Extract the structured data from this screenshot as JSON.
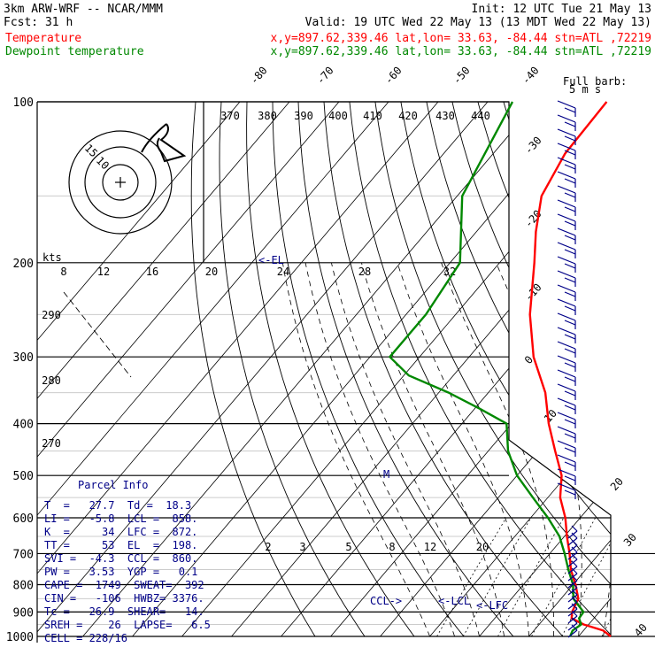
{
  "header": {
    "line1_left": "3km ARW-WRF -- NCAR/MMM",
    "line1_right": "Init: 12 UTC Tue 21 May 13",
    "line2_left": "Fcst:    31 h",
    "line2_right": "Valid: 19 UTC Wed 22 May 13 (13 MDT Wed 22 May 13)",
    "line3_left": "Temperature",
    "line3_right": "x,y=897.62,339.46   lat,lon= 33.63, -84.44  stn=ATL ,72219",
    "line4_left": "Dewpoint temperature",
    "line4_right": "x,y=897.62,339.46   lat,lon= 33.63, -84.44  stn=ATL ,72219"
  },
  "colors": {
    "temperature": "#ff0000",
    "dewpoint": "#008800",
    "parcel_text": "#000088",
    "wind_barbs": "#000088",
    "isobars": "#000000"
  },
  "chart_data": {
    "type": "line",
    "chart_kind": "skew-T log-p sounding",
    "y_scale": "log",
    "pressure_levels": [
      100,
      200,
      300,
      400,
      500,
      600,
      700,
      800,
      900,
      1000
    ],
    "temperature_ticks": [
      "-80",
      "-70",
      "-60",
      "-50",
      "-40",
      "-30",
      "-20",
      "-10",
      "0",
      "10",
      "20",
      "30",
      "40"
    ],
    "theta_labels": [
      "370",
      "380",
      "390",
      "400",
      "410",
      "420",
      "430",
      "440"
    ],
    "theta_e_labels": [
      "290",
      "280",
      "270"
    ],
    "mixing_ratio_labels": [
      "2",
      "3",
      "5",
      "8",
      "12",
      "20"
    ],
    "hodograph": {
      "units_label": "kts",
      "axis_labels": [
        "8",
        "12",
        "16",
        "20",
        "24",
        "28",
        "32"
      ],
      "ring_labels": [
        "15",
        "10"
      ]
    },
    "wind_scale_label": "Full barb:",
    "wind_scale_value": "5 m s",
    "series": [
      {
        "name": "Temperature",
        "points": [
          [
            1000,
            26.5
          ],
          [
            975,
            24.0
          ],
          [
            950,
            19.0
          ],
          [
            925,
            15.5
          ],
          [
            900,
            14.5
          ],
          [
            850,
            13.5
          ],
          [
            800,
            10.5
          ],
          [
            750,
            7.0
          ],
          [
            700,
            4.0
          ],
          [
            650,
            0.5
          ],
          [
            600,
            -3.0
          ],
          [
            550,
            -7.5
          ],
          [
            500,
            -11.0
          ],
          [
            450,
            -16.5
          ],
          [
            400,
            -22.5
          ],
          [
            350,
            -28.5
          ],
          [
            300,
            -37.0
          ],
          [
            250,
            -45.0
          ],
          [
            200,
            -53.0
          ],
          [
            175,
            -58.0
          ],
          [
            150,
            -63.0
          ],
          [
            125,
            -65.5
          ],
          [
            100,
            -66.0
          ]
        ]
      },
      {
        "name": "Dewpoint temperature",
        "points": [
          [
            1000,
            18.3
          ],
          [
            975,
            17.8
          ],
          [
            950,
            18.5
          ],
          [
            925,
            17.0
          ],
          [
            900,
            16.8
          ],
          [
            850,
            12.5
          ],
          [
            800,
            10.0
          ],
          [
            750,
            6.5
          ],
          [
            700,
            3.0
          ],
          [
            650,
            -1.0
          ],
          [
            600,
            -6.5
          ],
          [
            550,
            -13.0
          ],
          [
            500,
            -20.0
          ],
          [
            450,
            -26.0
          ],
          [
            400,
            -31.0
          ],
          [
            375,
            -39.0
          ],
          [
            350,
            -48.0
          ],
          [
            325,
            -59.0
          ],
          [
            300,
            -66.0
          ],
          [
            250,
            -66.0
          ],
          [
            200,
            -68.0
          ],
          [
            150,
            -79.0
          ],
          [
            100,
            -85.0
          ]
        ]
      }
    ],
    "level_markers": [
      {
        "label": "<-EL",
        "pressure": 198
      },
      {
        "label": "M",
        "pressure": 500
      },
      {
        "label": "CCL->",
        "pressure": 860
      },
      {
        "label": "<-LCL",
        "pressure": 858
      },
      {
        "label": "<-LFC",
        "pressure": 872
      }
    ],
    "parcel_info": {
      "title": "Parcel Info",
      "lines": [
        "T  =   27.7  Td =  18.3",
        "LI =   -5.8  LCL =  858.",
        "K  =     34  LFC =  872.",
        "TT =     53  EL  =  198.",
        "SVI =  -4.3  CCL =  860.",
        "PW =   3.53  YGP =   0.1",
        "CAPE =  1749  SWEAT=  392",
        "CIN =   -106  HWBZ= 3376.",
        "Tc =   26.9  SHEAR=   14.",
        "SREH =    26  LAPSE=   6.5",
        "CELL = 228/16"
      ]
    }
  }
}
